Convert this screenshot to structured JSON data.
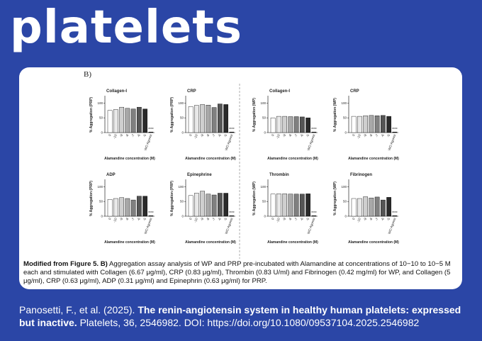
{
  "header": {
    "logo": "platelets"
  },
  "figure": {
    "panel_label": "B)"
  },
  "chart_data": [
    {
      "type": "bar",
      "title": "Collagen-I",
      "y_label": "% Aggregation (PRP)",
      "x_label": "Alamandine concentration (M)",
      "categories": [
        "0",
        "-10",
        "-9",
        "-8",
        "-7",
        "-6",
        "-5",
        "WO Agonist"
      ],
      "values": [
        75,
        78,
        86,
        82,
        80,
        86,
        80,
        2
      ],
      "colors": [
        "#ffffff",
        "#e8e8e8",
        "#cfcfcf",
        "#a8a8a8",
        "#808080",
        "#555555",
        "#2a2a2a",
        "#000000"
      ],
      "ylim": [
        0,
        120
      ],
      "yticks": [
        0,
        50,
        100
      ],
      "annotation": "****"
    },
    {
      "type": "bar",
      "title": "CRP",
      "y_label": "% Aggregation (PRP)",
      "x_label": "Alamandine concentration (M)",
      "categories": [
        "0",
        "-10",
        "-9",
        "-8",
        "-7",
        "-6",
        "-5",
        "WO Agonist"
      ],
      "values": [
        88,
        92,
        95,
        93,
        85,
        97,
        95,
        2
      ],
      "colors": [
        "#ffffff",
        "#e8e8e8",
        "#cfcfcf",
        "#a8a8a8",
        "#808080",
        "#555555",
        "#2a2a2a",
        "#000000"
      ],
      "ylim": [
        0,
        120
      ],
      "yticks": [
        0,
        50,
        100
      ],
      "annotation": "****"
    },
    {
      "type": "bar",
      "title": "Collagen-I",
      "y_label": "% Aggregation (WP)",
      "x_label": "Alamandine concentration (M)",
      "categories": [
        "0",
        "-10",
        "-9",
        "-8",
        "-7",
        "-6",
        "-5",
        "WO Agonist"
      ],
      "values": [
        50,
        55,
        55,
        54,
        54,
        53,
        50,
        2
      ],
      "colors": [
        "#ffffff",
        "#e8e8e8",
        "#cfcfcf",
        "#a8a8a8",
        "#808080",
        "#555555",
        "#2a2a2a",
        "#000000"
      ],
      "ylim": [
        0,
        120
      ],
      "yticks": [
        0,
        50,
        100
      ],
      "annotation": "****"
    },
    {
      "type": "bar",
      "title": "CRP",
      "y_label": "% Aggregation (WP)",
      "x_label": "Alamandine concentration (M)",
      "categories": [
        "0",
        "-10",
        "-9",
        "-8",
        "-7",
        "-6",
        "-5",
        "WO Agonist"
      ],
      "values": [
        55,
        55,
        57,
        58,
        57,
        58,
        55,
        2
      ],
      "colors": [
        "#ffffff",
        "#e8e8e8",
        "#cfcfcf",
        "#a8a8a8",
        "#808080",
        "#555555",
        "#2a2a2a",
        "#000000"
      ],
      "ylim": [
        0,
        120
      ],
      "yticks": [
        0,
        50,
        100
      ],
      "annotation": "****"
    },
    {
      "type": "bar",
      "title": "ADP",
      "y_label": "% Aggregation (PRP)",
      "x_label": "Alamandine concentration (M)",
      "categories": [
        "0",
        "-10",
        "-9",
        "-8",
        "-7",
        "-6",
        "-5",
        "WO Agonist"
      ],
      "values": [
        57,
        60,
        63,
        60,
        55,
        68,
        68,
        2
      ],
      "colors": [
        "#ffffff",
        "#e8e8e8",
        "#cfcfcf",
        "#a8a8a8",
        "#808080",
        "#555555",
        "#2a2a2a",
        "#000000"
      ],
      "ylim": [
        0,
        120
      ],
      "yticks": [
        0,
        50,
        100
      ],
      "annotation": "****"
    },
    {
      "type": "bar",
      "title": "Epinephrine",
      "y_label": "% Aggregation (PRP)",
      "x_label": "Alamandine concentration (M)",
      "categories": [
        "0",
        "-10",
        "-9",
        "-8",
        "-7",
        "-6",
        "-5",
        "WO Agonist"
      ],
      "values": [
        70,
        78,
        85,
        75,
        72,
        78,
        78,
        2
      ],
      "colors": [
        "#ffffff",
        "#e8e8e8",
        "#cfcfcf",
        "#a8a8a8",
        "#808080",
        "#555555",
        "#2a2a2a",
        "#000000"
      ],
      "ylim": [
        0,
        120
      ],
      "yticks": [
        0,
        50,
        100
      ],
      "annotation": "****"
    },
    {
      "type": "bar",
      "title": "Thrombin",
      "y_label": "% Aggregation (WP)",
      "x_label": "Alamandine concentration (M)",
      "categories": [
        "0",
        "-10",
        "-9",
        "-8",
        "-7",
        "-6",
        "-5",
        "WO Agonist"
      ],
      "values": [
        75,
        76,
        76,
        75,
        75,
        75,
        76,
        2
      ],
      "colors": [
        "#ffffff",
        "#e8e8e8",
        "#cfcfcf",
        "#a8a8a8",
        "#808080",
        "#555555",
        "#2a2a2a",
        "#000000"
      ],
      "ylim": [
        0,
        120
      ],
      "yticks": [
        0,
        50,
        100
      ],
      "annotation": "****"
    },
    {
      "type": "bar",
      "title": "Fibrinogen",
      "y_label": "% Aggregation (WP)",
      "x_label": "Alamandine concentration (M)",
      "categories": [
        "0",
        "-10",
        "-9",
        "-8",
        "-7",
        "-6",
        "-5",
        "WO Agonist"
      ],
      "values": [
        60,
        60,
        66,
        62,
        65,
        55,
        64,
        2
      ],
      "colors": [
        "#ffffff",
        "#e8e8e8",
        "#cfcfcf",
        "#a8a8a8",
        "#808080",
        "#555555",
        "#2a2a2a",
        "#000000"
      ],
      "ylim": [
        0,
        120
      ],
      "yticks": [
        0,
        50,
        100
      ],
      "annotation": "****"
    }
  ],
  "caption": {
    "lead": "Modified from Figure 5. B)",
    "text": "Aggregation assay analysis of WP and PRP pre-incubated with Alamandine at concentrations of 10−10 to 10−5 M each and stimulated with Collagen (6.67 μg/ml), CRP (0.83 μg/ml), Thrombin (0.83 U/ml) and Fibrinogen (0.42 mg/ml) for WP, and Collagen (5 μg/ml), CRP (0.63 μg/ml), ADP (0.31 μg/ml) and Epinephrin (0.63 μg/ml) for PRP."
  },
  "citation": {
    "authors": "Panosetti, F., et al. (2025).",
    "title": "The renin-angiotensin system in healthy human platelets: expressed but inactive.",
    "source": "Platelets, 36, 2546982. DOI: https://doi.org/10.1080/09537104.2025.2546982"
  }
}
